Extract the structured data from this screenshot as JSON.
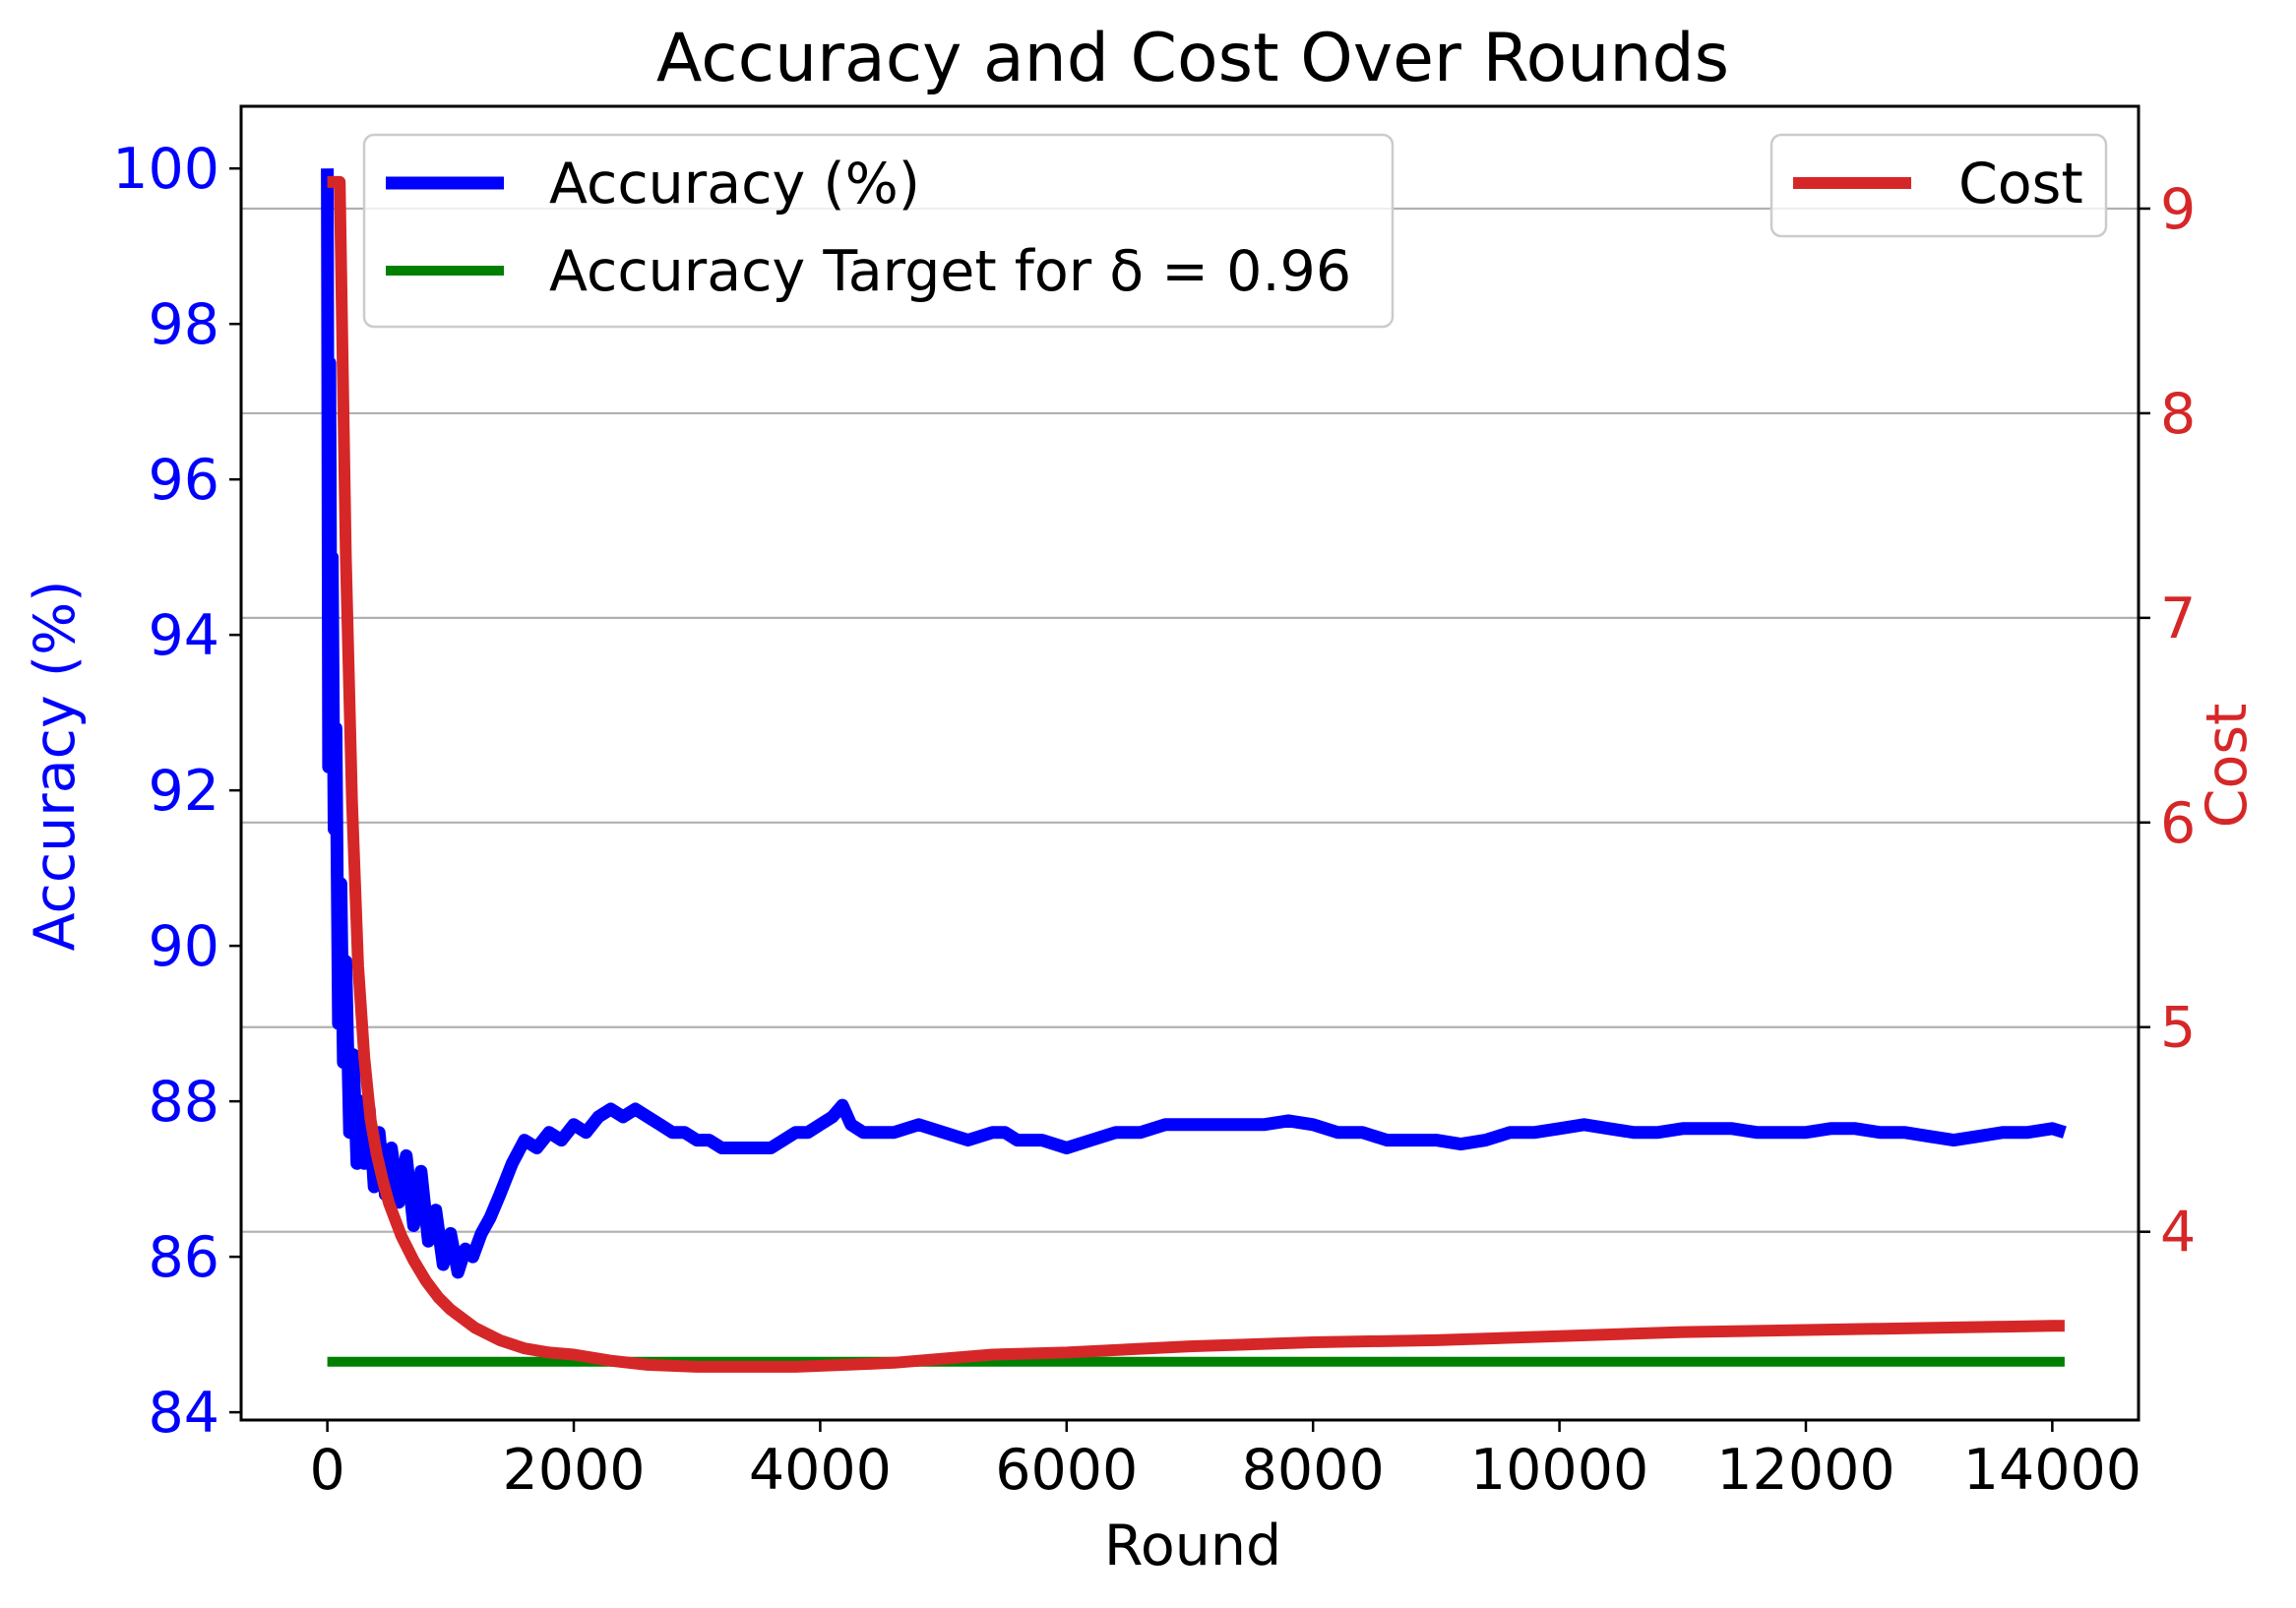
{
  "chart_data": {
    "type": "line",
    "title": "Accuracy and Cost Over Rounds",
    "xlabel": "Round",
    "ylabel_left": "Accuracy (%)",
    "ylabel_right": "Cost",
    "xlim": [
      -700,
      14700
    ],
    "ylim_left": [
      83.9,
      100.8
    ],
    "ylim_right": [
      3.08,
      9.5
    ],
    "x_ticks": [
      0,
      2000,
      4000,
      6000,
      8000,
      10000,
      12000,
      14000
    ],
    "x_tick_labels": [
      "0",
      "2000",
      "4000",
      "6000",
      "8000",
      "10000",
      "12000",
      "14000"
    ],
    "y_left_ticks": [
      84,
      86,
      88,
      90,
      92,
      94,
      96,
      98,
      100
    ],
    "y_left_tick_labels": [
      "84",
      "86",
      "88",
      "90",
      "92",
      "94",
      "96",
      "98",
      "100"
    ],
    "y_right_ticks": [
      4,
      5,
      6,
      7,
      8,
      9
    ],
    "y_right_tick_labels": [
      "4",
      "5",
      "6",
      "7",
      "8",
      "9"
    ],
    "grid": "horizontal lines at right-axis ticks",
    "series": [
      {
        "name": "Accuracy (%)",
        "axis": "left",
        "color": "#0000ff",
        "x": [
          0,
          10,
          20,
          30,
          40,
          55,
          70,
          90,
          110,
          130,
          150,
          180,
          210,
          240,
          270,
          300,
          340,
          380,
          420,
          470,
          520,
          580,
          640,
          700,
          760,
          820,
          880,
          940,
          1000,
          1060,
          1120,
          1180,
          1250,
          1320,
          1400,
          1500,
          1600,
          1700,
          1800,
          1900,
          2000,
          2100,
          2200,
          2300,
          2400,
          2500,
          2600,
          2700,
          2800,
          2900,
          3000,
          3100,
          3200,
          3300,
          3400,
          3500,
          3600,
          3700,
          3800,
          3900,
          4000,
          4100,
          4180,
          4250,
          4350,
          4450,
          4600,
          4800,
          5000,
          5200,
          5400,
          5500,
          5600,
          5800,
          6000,
          6200,
          6400,
          6600,
          6800,
          7000,
          7200,
          7400,
          7600,
          7800,
          8000,
          8200,
          8400,
          8600,
          8800,
          9000,
          9200,
          9400,
          9600,
          9800,
          10000,
          10200,
          10400,
          10600,
          10800,
          11000,
          11200,
          11400,
          11600,
          11800,
          12000,
          12200,
          12400,
          12600,
          12800,
          13000,
          13200,
          13400,
          13600,
          13800,
          14000,
          14100
        ],
        "y": [
          100.0,
          92.3,
          97.5,
          93.0,
          95.0,
          91.5,
          92.8,
          89.0,
          90.8,
          88.5,
          89.8,
          87.6,
          88.6,
          87.2,
          88.0,
          87.2,
          87.9,
          86.9,
          87.6,
          86.8,
          87.4,
          86.7,
          87.3,
          86.4,
          87.1,
          86.2,
          86.6,
          85.9,
          86.3,
          85.8,
          86.1,
          86.0,
          86.3,
          86.5,
          86.8,
          87.2,
          87.5,
          87.4,
          87.6,
          87.5,
          87.7,
          87.6,
          87.8,
          87.9,
          87.8,
          87.9,
          87.8,
          87.7,
          87.6,
          87.6,
          87.5,
          87.5,
          87.4,
          87.4,
          87.4,
          87.4,
          87.4,
          87.5,
          87.6,
          87.6,
          87.7,
          87.8,
          87.95,
          87.7,
          87.6,
          87.6,
          87.6,
          87.7,
          87.6,
          87.5,
          87.6,
          87.6,
          87.5,
          87.5,
          87.4,
          87.5,
          87.6,
          87.6,
          87.7,
          87.7,
          87.7,
          87.7,
          87.7,
          87.75,
          87.7,
          87.6,
          87.6,
          87.5,
          87.5,
          87.5,
          87.45,
          87.5,
          87.6,
          87.6,
          87.65,
          87.7,
          87.65,
          87.6,
          87.6,
          87.65,
          87.65,
          87.65,
          87.6,
          87.6,
          87.6,
          87.65,
          87.65,
          87.6,
          87.6,
          87.55,
          87.5,
          87.55,
          87.6,
          87.6,
          87.65,
          87.6
        ]
      },
      {
        "name": "Accuracy Target for δ = 0.96",
        "axis": "left",
        "color": "#008000",
        "x": [
          0,
          14100
        ],
        "y": [
          84.65,
          84.65
        ]
      },
      {
        "name": "Cost",
        "axis": "right",
        "color": "#d62728",
        "x": [
          0,
          100,
          150,
          200,
          250,
          300,
          350,
          400,
          450,
          500,
          600,
          700,
          800,
          900,
          1000,
          1200,
          1400,
          1600,
          1800,
          2000,
          2300,
          2600,
          3000,
          3400,
          3800,
          4200,
          4600,
          5000,
          5400,
          6000,
          7000,
          8000,
          9000,
          10000,
          11000,
          12000,
          13000,
          14000,
          14100
        ],
        "y": [
          9.13,
          9.13,
          7.3,
          6.1,
          5.3,
          4.85,
          4.55,
          4.38,
          4.25,
          4.14,
          3.98,
          3.86,
          3.76,
          3.68,
          3.62,
          3.53,
          3.47,
          3.43,
          3.41,
          3.4,
          3.37,
          3.35,
          3.34,
          3.34,
          3.34,
          3.35,
          3.36,
          3.38,
          3.4,
          3.41,
          3.44,
          3.46,
          3.47,
          3.49,
          3.51,
          3.52,
          3.53,
          3.54,
          3.54
        ]
      }
    ],
    "legends": [
      {
        "placement": "upper-left",
        "entries": [
          "Accuracy (%)",
          "Accuracy Target for δ = 0.96"
        ]
      },
      {
        "placement": "upper-right",
        "entries": [
          "Cost"
        ]
      }
    ]
  }
}
